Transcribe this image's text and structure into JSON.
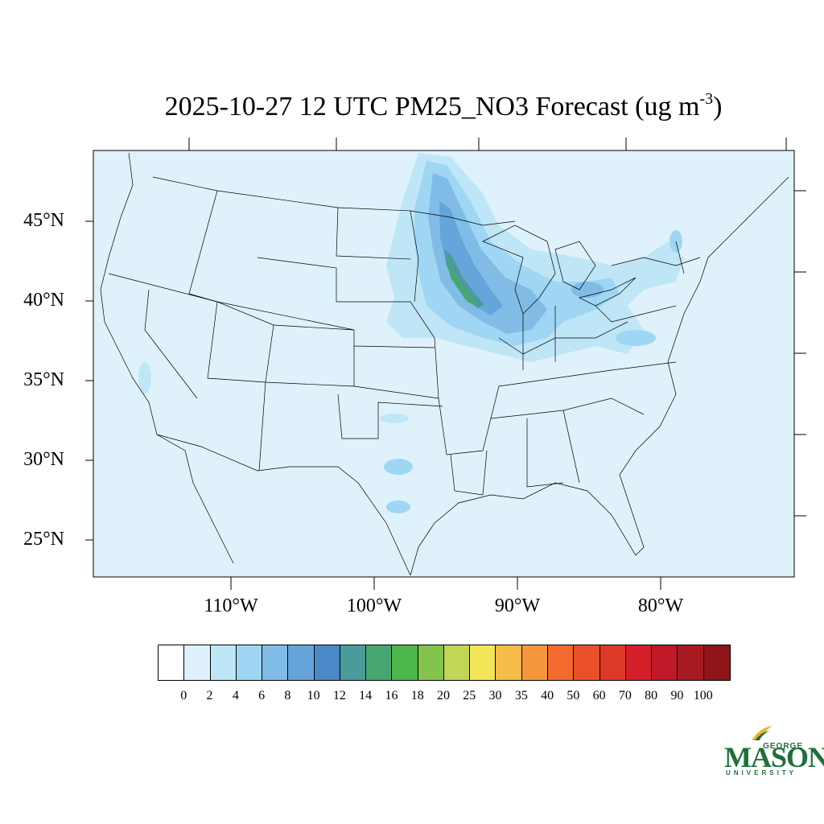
{
  "title": {
    "main": "2025-10-27 12 UTC PM25_NO3 Forecast (ug m",
    "superscript": "-3",
    "close": ")"
  },
  "map": {
    "lat_labels": [
      "45°N",
      "40°N",
      "35°N",
      "30°N",
      "25°N"
    ],
    "lon_labels": [
      "110°W",
      "100°W",
      "90°W",
      "80°W"
    ],
    "ocean_color": "#dff2fb",
    "border_color": "#000000"
  },
  "colorbar": {
    "levels": [
      "0",
      "2",
      "4",
      "6",
      "8",
      "10",
      "12",
      "14",
      "16",
      "18",
      "20",
      "25",
      "30",
      "35",
      "40",
      "50",
      "60",
      "70",
      "80",
      "90",
      "100"
    ],
    "colors": [
      "#ffffff",
      "#dff2fb",
      "#bfe6f7",
      "#9fd6f4",
      "#80bce6",
      "#65a5db",
      "#4a8ac8",
      "#4a9b9b",
      "#48a66f",
      "#4bb64a",
      "#84c44d",
      "#c2d556",
      "#f5e55b",
      "#f5bc49",
      "#f6963c",
      "#f26a2e",
      "#ea512b",
      "#de3a27",
      "#d41f2a",
      "#c0192a",
      "#a81a22",
      "#8f1519"
    ]
  },
  "logo": {
    "line1": "GEORGE",
    "line2": "MASON",
    "line3": "UNIVERSITY",
    "color": "#1f6f3a",
    "accent": "#e6b82a"
  }
}
